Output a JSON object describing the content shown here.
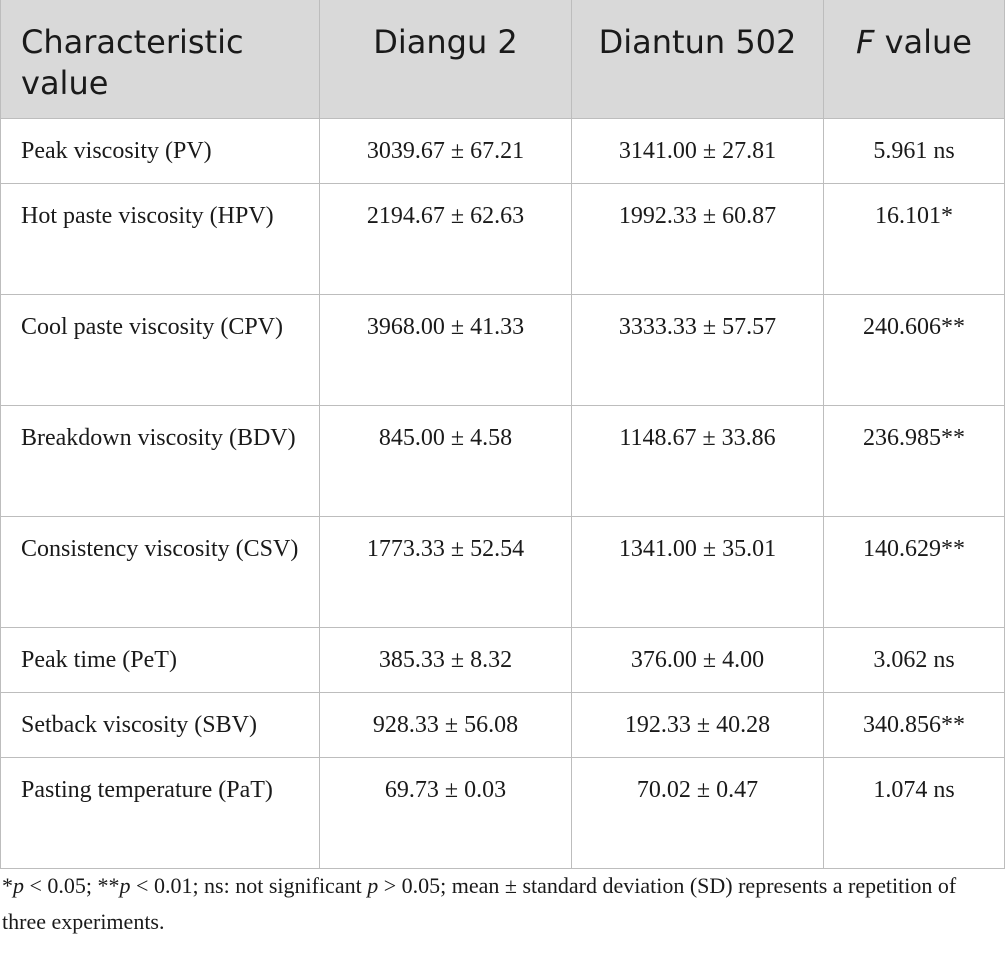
{
  "table": {
    "headers": {
      "characteristic": "Characteristic value",
      "diangu": "Diangu 2",
      "diantun": "Diantun 502",
      "f_italic": "F",
      "f_rest": " value"
    },
    "rows": [
      {
        "label": "Peak viscosity (PV)",
        "diangu": "3039.67 ± 67.21",
        "diantun": "3141.00 ± 27.81",
        "f": "5.961 ns"
      },
      {
        "label": "Hot paste viscosity (HPV)",
        "diangu": "2194.67 ± 62.63",
        "diantun": "1992.33 ± 60.87",
        "f": "16.101*"
      },
      {
        "label": "Cool paste viscosity (CPV)",
        "diangu": "3968.00 ± 41.33",
        "diantun": "3333.33 ± 57.57",
        "f": "240.606**"
      },
      {
        "label": "Breakdown viscosity (BDV)",
        "diangu": "845.00 ± 4.58",
        "diantun": "1148.67 ± 33.86",
        "f": "236.985**"
      },
      {
        "label": "Consistency viscosity (CSV)",
        "diangu": "1773.33 ± 52.54",
        "diantun": "1341.00 ± 35.01",
        "f": "140.629**"
      },
      {
        "label": "Peak time (PeT)",
        "diangu": "385.33 ± 8.32",
        "diantun": "376.00 ± 4.00",
        "f": "3.062 ns"
      },
      {
        "label": "Setback viscosity (SBV)",
        "diangu": "928.33 ± 56.08",
        "diantun": "192.33 ± 40.28",
        "f": "340.856**"
      },
      {
        "label": "Pasting temperature (PaT)",
        "diangu": "69.73 ± 0.03",
        "diantun": "70.02 ± 0.47",
        "f": "1.074 ns"
      }
    ]
  },
  "footnote": {
    "p1_pre": "*",
    "p1_var": "p",
    "p1_post": " < 0.05; **",
    "p2_var": "p",
    "p2_post": " < 0.01; ns: not significant ",
    "p3_var": "p",
    "p3_post": " > 0.05; mean ± standard deviation (SD) represents a repetition of three experiments."
  }
}
